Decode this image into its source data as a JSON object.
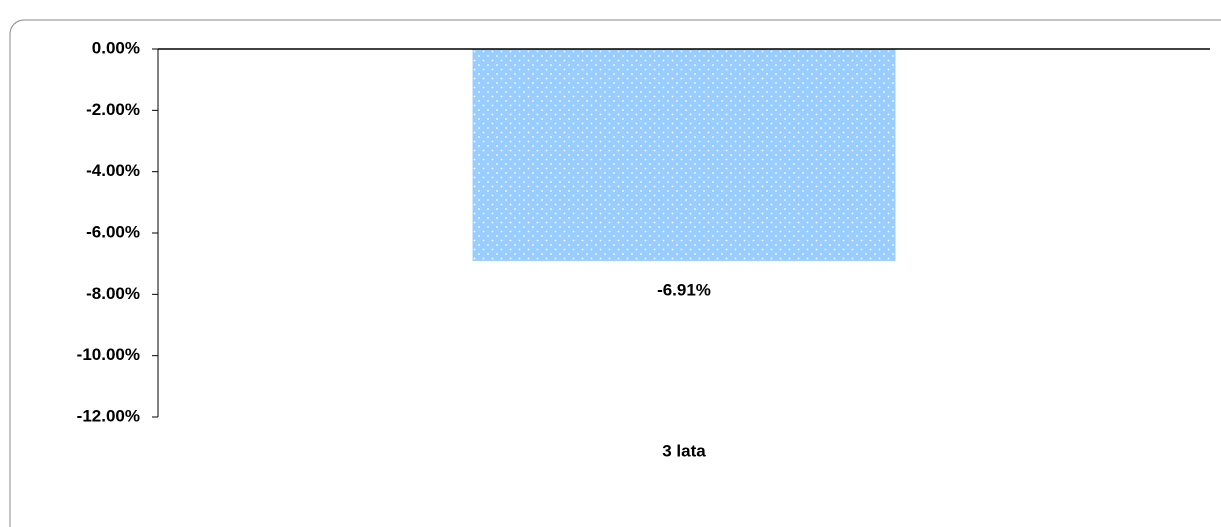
{
  "chart_data": {
    "type": "bar",
    "categories": [
      "3 lata"
    ],
    "values": [
      -6.91
    ],
    "value_labels": [
      "-6.91%"
    ],
    "color": "#99ccff",
    "ylim": [
      -12,
      0
    ],
    "yticks": [
      {
        "value": 0,
        "label": "0.00%"
      },
      {
        "value": -2,
        "label": "-2.00%"
      },
      {
        "value": -4,
        "label": "-4.00%"
      },
      {
        "value": -6,
        "label": "-6.00%"
      },
      {
        "value": -8,
        "label": "-8.00%"
      },
      {
        "value": -10,
        "label": "-10.00%"
      },
      {
        "value": -12,
        "label": "-12.00%"
      }
    ],
    "grid": false
  }
}
